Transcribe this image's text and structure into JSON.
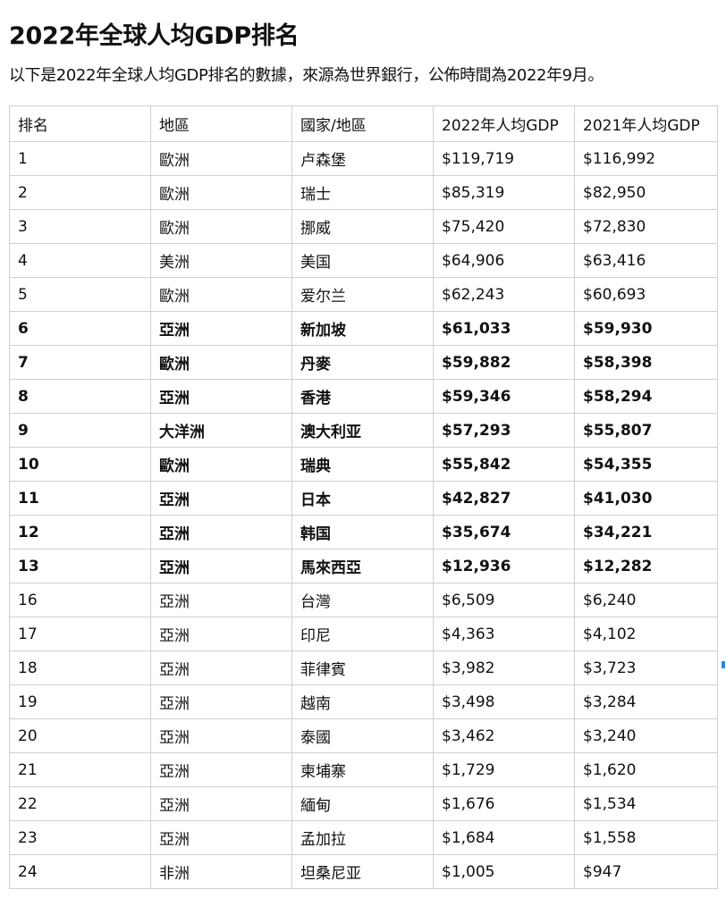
{
  "title": "2022年全球人均GDP排名",
  "intro": "以下是2022年全球人均GDP排名的數據，來源為世界銀行，公佈時間為2022年9月。",
  "table": {
    "headers": [
      "排名",
      "地區",
      "國家/地區",
      "2022年人均GDP",
      "2021年人均GDP"
    ],
    "rows": [
      {
        "bold": false,
        "cells": [
          "1",
          "歐洲",
          "卢森堡",
          "$119,719",
          "$116,992"
        ]
      },
      {
        "bold": false,
        "cells": [
          "2",
          "歐洲",
          "瑞士",
          "$85,319",
          "$82,950"
        ]
      },
      {
        "bold": false,
        "cells": [
          "3",
          "歐洲",
          "挪威",
          "$75,420",
          "$72,830"
        ]
      },
      {
        "bold": false,
        "cells": [
          "4",
          "美洲",
          "美国",
          "$64,906",
          "$63,416"
        ]
      },
      {
        "bold": false,
        "cells": [
          "5",
          "歐洲",
          "爱尔兰",
          "$62,243",
          "$60,693"
        ]
      },
      {
        "bold": true,
        "cells": [
          "6",
          "亞洲",
          "新加坡",
          "$61,033",
          "$59,930"
        ]
      },
      {
        "bold": true,
        "cells": [
          "7",
          "歐洲",
          "丹麥",
          "$59,882",
          "$58,398"
        ]
      },
      {
        "bold": true,
        "cells": [
          "8",
          "亞洲",
          "香港",
          "$59,346",
          "$58,294"
        ]
      },
      {
        "bold": true,
        "cells": [
          "9",
          "大洋洲",
          "澳大利亚",
          "$57,293",
          "$55,807"
        ]
      },
      {
        "bold": true,
        "cells": [
          "10",
          "歐洲",
          "瑞典",
          "$55,842",
          "$54,355"
        ]
      },
      {
        "bold": true,
        "cells": [
          "11",
          "亞洲",
          "日本",
          "$42,827",
          "$41,030"
        ]
      },
      {
        "bold": true,
        "cells": [
          "12",
          "亞洲",
          "韩国",
          "$35,674",
          "$34,221"
        ]
      },
      {
        "bold": true,
        "cells": [
          "13",
          "亞洲",
          "馬來西亞",
          "$12,936",
          "$12,282"
        ]
      },
      {
        "bold": false,
        "cells": [
          "16",
          "亞洲",
          "台灣",
          "$6,509",
          "$6,240"
        ]
      },
      {
        "bold": false,
        "cells": [
          "17",
          "亞洲",
          "印尼",
          "$4,363",
          "$4,102"
        ]
      },
      {
        "bold": false,
        "cells": [
          "18",
          "亞洲",
          "菲律賓",
          "$3,982",
          "$3,723"
        ]
      },
      {
        "bold": false,
        "cells": [
          "19",
          "亞洲",
          "越南",
          "$3,498",
          "$3,284"
        ]
      },
      {
        "bold": false,
        "cells": [
          "20",
          "亞洲",
          "泰國",
          "$3,462",
          "$3,240"
        ]
      },
      {
        "bold": false,
        "cells": [
          "21",
          "亞洲",
          "柬埔寨",
          "$1,729",
          "$1,620"
        ]
      },
      {
        "bold": false,
        "cells": [
          "22",
          "亞洲",
          "緬甸",
          "$1,676",
          "$1,534"
        ]
      },
      {
        "bold": false,
        "cells": [
          "23",
          "亞洲",
          "孟加拉",
          "$1,684",
          "$1,558"
        ]
      },
      {
        "bold": false,
        "cells": [
          "24",
          "非洲",
          "坦桑尼亚",
          "$1,005",
          "$947"
        ]
      }
    ]
  },
  "colors": {
    "text": "#111111",
    "border": "#cfcfcf",
    "scroll_marker": "#2f86d6"
  }
}
